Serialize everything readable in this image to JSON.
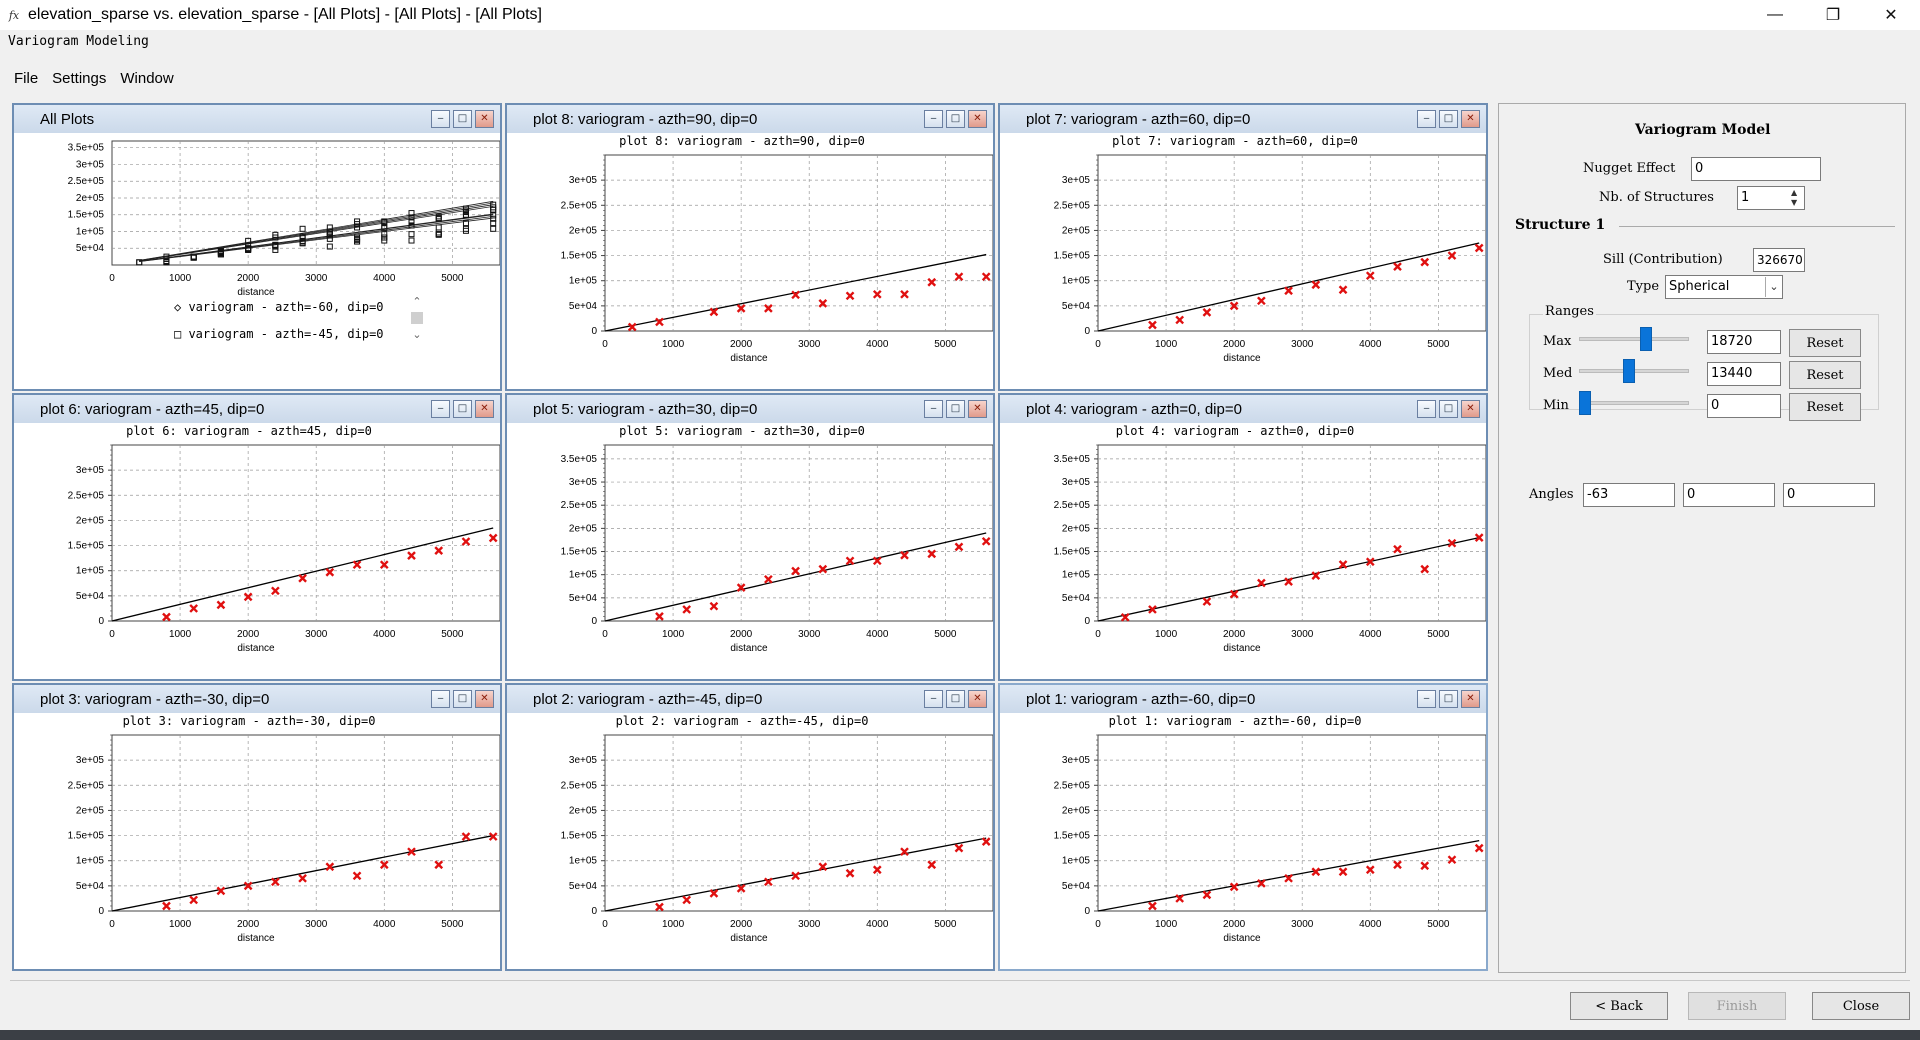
{
  "window": {
    "title": "elevation_sparse vs. elevation_sparse - [All Plots] - [All Plots] - [All Plots]",
    "subtitle": "Variogram Modeling",
    "app_icon": "fx"
  },
  "menu": [
    "File",
    "Settings",
    "Window"
  ],
  "all_plots": {
    "title": "All Plots",
    "legend": [
      "variogram - azth=-60, dip=0",
      "variogram - azth=-45, dip=0"
    ]
  },
  "plots": [
    {
      "id": "plot8",
      "title": "plot 8:  variogram - azth=90, dip=0",
      "inner_title": "plot 8:  variogram - azth=90, dip=0",
      "ymax": 3.5,
      "yticks": [
        "0",
        "5e+04",
        "1e+05",
        "1.5e+05",
        "2e+05",
        "2.5e+05",
        "3e+05"
      ],
      "points": [
        [
          400,
          8
        ],
        [
          800,
          18
        ],
        [
          1600,
          38
        ],
        [
          2000,
          45
        ],
        [
          2400,
          45
        ],
        [
          2800,
          72
        ],
        [
          3200,
          55
        ],
        [
          3600,
          70
        ],
        [
          4000,
          73
        ],
        [
          4400,
          73
        ],
        [
          4800,
          97
        ],
        [
          5200,
          108
        ],
        [
          5600,
          108
        ]
      ],
      "line": [
        [
          0,
          0
        ],
        [
          5600,
          152
        ]
      ]
    },
    {
      "id": "plot7",
      "title": "plot 7:  variogram - azth=60, dip=0",
      "inner_title": "plot 7:  variogram - azth=60, dip=0",
      "ymax": 3.5,
      "yticks": [
        "0",
        "5e+04",
        "1e+05",
        "1.5e+05",
        "2e+05",
        "2.5e+05",
        "3e+05"
      ],
      "points": [
        [
          800,
          12
        ],
        [
          1200,
          22
        ],
        [
          1600,
          37
        ],
        [
          2000,
          50
        ],
        [
          2400,
          60
        ],
        [
          2800,
          80
        ],
        [
          3200,
          92
        ],
        [
          3600,
          82
        ],
        [
          4000,
          110
        ],
        [
          4400,
          128
        ],
        [
          4800,
          137
        ],
        [
          5200,
          150
        ],
        [
          5600,
          165
        ]
      ],
      "line": [
        [
          0,
          0
        ],
        [
          5600,
          175
        ]
      ]
    },
    {
      "id": "plot6",
      "title": "plot 6:  variogram - azth=45, dip=0",
      "inner_title": "plot 6:  variogram - azth=45, dip=0",
      "ymax": 3.5,
      "yticks": [
        "0",
        "5e+04",
        "1e+05",
        "1.5e+05",
        "2e+05",
        "2.5e+05",
        "3e+05"
      ],
      "points": [
        [
          800,
          8
        ],
        [
          1200,
          25
        ],
        [
          1600,
          32
        ],
        [
          2000,
          48
        ],
        [
          2400,
          60
        ],
        [
          2800,
          85
        ],
        [
          3200,
          97
        ],
        [
          3600,
          112
        ],
        [
          4000,
          112
        ],
        [
          4400,
          130
        ],
        [
          4800,
          140
        ],
        [
          5200,
          158
        ],
        [
          5600,
          165
        ]
      ],
      "line": [
        [
          0,
          0
        ],
        [
          5600,
          185
        ]
      ]
    },
    {
      "id": "plot5",
      "title": "plot 5:  variogram - azth=30, dip=0",
      "inner_title": "plot 5:  variogram - azth=30, dip=0",
      "ymax": 3.8,
      "yticks": [
        "0",
        "5e+04",
        "1e+05",
        "1.5e+05",
        "2e+05",
        "2.5e+05",
        "3e+05",
        "3.5e+05"
      ],
      "points": [
        [
          800,
          10
        ],
        [
          1200,
          25
        ],
        [
          1600,
          32
        ],
        [
          2000,
          72
        ],
        [
          2400,
          90
        ],
        [
          2800,
          108
        ],
        [
          3200,
          112
        ],
        [
          3600,
          130
        ],
        [
          4000,
          130
        ],
        [
          4400,
          142
        ],
        [
          4800,
          145
        ],
        [
          5200,
          160
        ],
        [
          5600,
          172
        ]
      ],
      "line": [
        [
          0,
          0
        ],
        [
          5600,
          190
        ]
      ]
    },
    {
      "id": "plot4",
      "title": "plot 4:  variogram - azth=0, dip=0",
      "inner_title": "plot 4:  variogram - azth=0, dip=0",
      "ymax": 3.8,
      "yticks": [
        "0",
        "5e+04",
        "1e+05",
        "1.5e+05",
        "2e+05",
        "2.5e+05",
        "3e+05",
        "3.5e+05"
      ],
      "points": [
        [
          400,
          8
        ],
        [
          800,
          25
        ],
        [
          1600,
          42
        ],
        [
          2000,
          58
        ],
        [
          2400,
          82
        ],
        [
          2800,
          85
        ],
        [
          3200,
          98
        ],
        [
          3600,
          122
        ],
        [
          4000,
          128
        ],
        [
          4400,
          155
        ],
        [
          4800,
          112
        ],
        [
          5200,
          168
        ],
        [
          5600,
          180
        ]
      ],
      "line": [
        [
          0,
          0
        ],
        [
          5600,
          180
        ]
      ]
    },
    {
      "id": "plot3",
      "title": "plot 3:  variogram - azth=-30, dip=0",
      "inner_title": "plot 3:  variogram - azth=-30, dip=0",
      "ymax": 3.5,
      "yticks": [
        "0",
        "5e+04",
        "1e+05",
        "1.5e+05",
        "2e+05",
        "2.5e+05",
        "3e+05"
      ],
      "points": [
        [
          800,
          10
        ],
        [
          1200,
          22
        ],
        [
          1600,
          40
        ],
        [
          2000,
          50
        ],
        [
          2400,
          58
        ],
        [
          2800,
          65
        ],
        [
          3200,
          88
        ],
        [
          3600,
          70
        ],
        [
          4000,
          92
        ],
        [
          4400,
          118
        ],
        [
          4800,
          92
        ],
        [
          5200,
          148
        ],
        [
          5600,
          148
        ]
      ],
      "line": [
        [
          0,
          0
        ],
        [
          5600,
          150
        ]
      ]
    },
    {
      "id": "plot2",
      "title": "plot 2:  variogram - azth=-45, dip=0",
      "inner_title": "plot 2:  variogram - azth=-45, dip=0",
      "ymax": 3.5,
      "yticks": [
        "0",
        "5e+04",
        "1e+05",
        "1.5e+05",
        "2e+05",
        "2.5e+05",
        "3e+05"
      ],
      "points": [
        [
          800,
          8
        ],
        [
          1200,
          22
        ],
        [
          1600,
          35
        ],
        [
          2000,
          45
        ],
        [
          2400,
          58
        ],
        [
          2800,
          70
        ],
        [
          3200,
          88
        ],
        [
          3600,
          75
        ],
        [
          4000,
          82
        ],
        [
          4400,
          118
        ],
        [
          4800,
          92
        ],
        [
          5200,
          125
        ],
        [
          5600,
          138
        ]
      ],
      "line": [
        [
          0,
          0
        ],
        [
          5600,
          145
        ]
      ]
    },
    {
      "id": "plot1",
      "title": "plot 1:  variogram - azth=-60, dip=0",
      "inner_title": "plot 1:  variogram - azth=-60, dip=0",
      "ymax": 3.5,
      "yticks": [
        "0",
        "5e+04",
        "1e+05",
        "1.5e+05",
        "2e+05",
        "2.5e+05",
        "3e+05"
      ],
      "points": [
        [
          800,
          10
        ],
        [
          1200,
          25
        ],
        [
          1600,
          32
        ],
        [
          2000,
          48
        ],
        [
          2400,
          55
        ],
        [
          2800,
          65
        ],
        [
          3200,
          78
        ],
        [
          3600,
          78
        ],
        [
          4000,
          82
        ],
        [
          4400,
          92
        ],
        [
          4800,
          90
        ],
        [
          5200,
          102
        ],
        [
          5600,
          125
        ]
      ],
      "line": [
        [
          0,
          0
        ],
        [
          5600,
          140
        ]
      ]
    }
  ],
  "all_plots_yticks": [
    "5e+04",
    "1e+05",
    "1.5e+05",
    "2e+05",
    "2.5e+05",
    "3e+05",
    "3.5e+05"
  ],
  "xticks": [
    "0",
    "1000",
    "2000",
    "3000",
    "4000",
    "5000"
  ],
  "xlabel": "distance",
  "model": {
    "title": "Variogram Model",
    "nugget_label": "Nugget Effect",
    "nugget_value": "0",
    "nb_structures_label": "Nb. of Structures",
    "nb_structures_value": "1",
    "structure_label": "Structure 1",
    "sill_label": "Sill (Contribution)",
    "sill_value": "326670",
    "type_label": "Type",
    "type_value": "Spherical",
    "ranges_label": "Ranges",
    "max_label": "Max",
    "max_value": "18720",
    "max_slider": 0.62,
    "med_label": "Med",
    "med_value": "13440",
    "med_slider": 0.45,
    "min_label": "Min",
    "min_value": "0",
    "min_slider": 0.0,
    "reset_label": "Reset",
    "angles_label": "Angles",
    "angle1": "-63",
    "angle2": "0",
    "angle3": "0"
  },
  "buttons": {
    "back": "< Back",
    "finish": "Finish",
    "close": "Close"
  },
  "chart_data": [
    {
      "type": "scatter",
      "title": "plot 8:  variogram - azth=90, dip=0",
      "xlabel": "distance",
      "ylabel": "",
      "xlim": [
        0,
        5600
      ],
      "ylim": [
        0,
        350000
      ]
    },
    {
      "type": "scatter",
      "title": "plot 7:  variogram - azth=60, dip=0",
      "xlabel": "distance",
      "xlim": [
        0,
        5600
      ],
      "ylim": [
        0,
        350000
      ]
    },
    {
      "type": "scatter",
      "title": "plot 6:  variogram - azth=45, dip=0",
      "xlabel": "distance",
      "xlim": [
        0,
        5600
      ],
      "ylim": [
        0,
        350000
      ]
    },
    {
      "type": "scatter",
      "title": "plot 5:  variogram - azth=30, dip=0",
      "xlabel": "distance",
      "xlim": [
        0,
        5600
      ],
      "ylim": [
        0,
        380000
      ]
    },
    {
      "type": "scatter",
      "title": "plot 4:  variogram - azth=0, dip=0",
      "xlabel": "distance",
      "xlim": [
        0,
        5600
      ],
      "ylim": [
        0,
        380000
      ]
    },
    {
      "type": "scatter",
      "title": "plot 3:  variogram - azth=-30, dip=0",
      "xlabel": "distance",
      "xlim": [
        0,
        5600
      ],
      "ylim": [
        0,
        350000
      ]
    },
    {
      "type": "scatter",
      "title": "plot 2:  variogram - azth=-45, dip=0",
      "xlabel": "distance",
      "xlim": [
        0,
        5600
      ],
      "ylim": [
        0,
        350000
      ]
    },
    {
      "type": "scatter",
      "title": "plot 1:  variogram - azth=-60, dip=0",
      "xlabel": "distance",
      "xlim": [
        0,
        5600
      ],
      "ylim": [
        0,
        350000
      ]
    }
  ]
}
